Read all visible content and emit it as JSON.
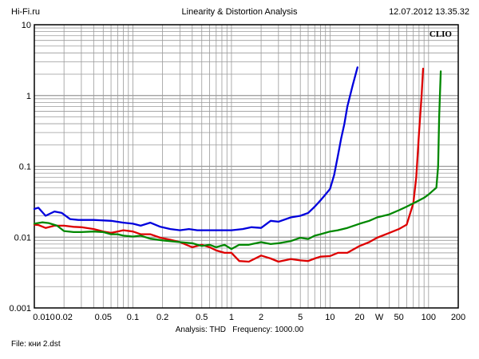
{
  "header": {
    "left": "Hi-Fi.ru",
    "center": "Linearity & Distortion Analysis",
    "right": "12.07.2012 13.35.32"
  },
  "brand": "CLIO",
  "footer": {
    "analysis_label": "Analysis: THD",
    "frequency_label": "Frequency: 1000.00",
    "file_label": "File: кни 2.dst"
  },
  "chart_data": {
    "type": "line",
    "xscale": "log",
    "yscale": "log",
    "xlim": [
      0.01,
      200
    ],
    "ylim": [
      0.001,
      10
    ],
    "xlabel": "W",
    "ylabel": "",
    "grid": true,
    "x_ticks": [
      "0.010",
      "0.02",
      "0.05",
      "0.1",
      "0.2",
      "0.5",
      "1",
      "2",
      "5",
      "10",
      "20",
      "50",
      "100",
      "200"
    ],
    "x_tick_values": [
      0.01,
      0.02,
      0.05,
      0.1,
      0.2,
      0.5,
      1,
      2,
      5,
      10,
      20,
      50,
      100,
      200
    ],
    "y_ticks": [
      "10",
      "1",
      "0.1",
      "0.01",
      "0.001"
    ],
    "y_tick_values": [
      10,
      1,
      0.1,
      0.01,
      0.001
    ],
    "series": [
      {
        "color": "#0000dd",
        "points": [
          [
            0.01,
            0.025
          ],
          [
            0.011,
            0.026
          ],
          [
            0.013,
            0.02
          ],
          [
            0.016,
            0.023
          ],
          [
            0.019,
            0.022
          ],
          [
            0.023,
            0.018
          ],
          [
            0.028,
            0.0175
          ],
          [
            0.04,
            0.0175
          ],
          [
            0.06,
            0.017
          ],
          [
            0.08,
            0.016
          ],
          [
            0.1,
            0.0155
          ],
          [
            0.12,
            0.0145
          ],
          [
            0.15,
            0.016
          ],
          [
            0.19,
            0.014
          ],
          [
            0.24,
            0.013
          ],
          [
            0.3,
            0.0125
          ],
          [
            0.37,
            0.013
          ],
          [
            0.45,
            0.0125
          ],
          [
            0.6,
            0.0125
          ],
          [
            0.8,
            0.0125
          ],
          [
            1,
            0.0125
          ],
          [
            1.3,
            0.013
          ],
          [
            1.6,
            0.0138
          ],
          [
            2,
            0.0135
          ],
          [
            2.5,
            0.017
          ],
          [
            3,
            0.0165
          ],
          [
            4,
            0.019
          ],
          [
            5,
            0.02
          ],
          [
            6,
            0.022
          ],
          [
            7,
            0.027
          ],
          [
            8,
            0.033
          ],
          [
            9,
            0.04
          ],
          [
            10,
            0.048
          ],
          [
            11,
            0.075
          ],
          [
            12,
            0.14
          ],
          [
            13,
            0.25
          ],
          [
            14,
            0.4
          ],
          [
            15,
            0.7
          ],
          [
            17,
            1.4
          ],
          [
            19,
            2.5
          ]
        ]
      },
      {
        "color": "#dd0000",
        "points": [
          [
            0.01,
            0.015
          ],
          [
            0.011,
            0.0148
          ],
          [
            0.013,
            0.0135
          ],
          [
            0.016,
            0.0145
          ],
          [
            0.02,
            0.0145
          ],
          [
            0.025,
            0.014
          ],
          [
            0.03,
            0.0138
          ],
          [
            0.04,
            0.013
          ],
          [
            0.05,
            0.012
          ],
          [
            0.06,
            0.0115
          ],
          [
            0.07,
            0.012
          ],
          [
            0.08,
            0.0125
          ],
          [
            0.1,
            0.012
          ],
          [
            0.12,
            0.011
          ],
          [
            0.15,
            0.011
          ],
          [
            0.19,
            0.0098
          ],
          [
            0.24,
            0.0092
          ],
          [
            0.3,
            0.0085
          ],
          [
            0.4,
            0.0072
          ],
          [
            0.5,
            0.0078
          ],
          [
            0.6,
            0.0072
          ],
          [
            0.7,
            0.0065
          ],
          [
            0.85,
            0.006
          ],
          [
            1,
            0.006
          ],
          [
            1.2,
            0.0046
          ],
          [
            1.5,
            0.0045
          ],
          [
            2,
            0.0055
          ],
          [
            2.5,
            0.005
          ],
          [
            3,
            0.0045
          ],
          [
            4,
            0.0049
          ],
          [
            5,
            0.0047
          ],
          [
            6,
            0.0046
          ],
          [
            7,
            0.005
          ],
          [
            8,
            0.0053
          ],
          [
            10,
            0.0054
          ],
          [
            12,
            0.006
          ],
          [
            15,
            0.006
          ],
          [
            20,
            0.0075
          ],
          [
            25,
            0.0085
          ],
          [
            30,
            0.0098
          ],
          [
            40,
            0.0115
          ],
          [
            50,
            0.013
          ],
          [
            60,
            0.015
          ],
          [
            70,
            0.03
          ],
          [
            75,
            0.07
          ],
          [
            80,
            0.3
          ],
          [
            85,
            1.0
          ],
          [
            88,
            2.4
          ]
        ]
      },
      {
        "color": "#008800",
        "points": [
          [
            0.01,
            0.0155
          ],
          [
            0.012,
            0.0162
          ],
          [
            0.014,
            0.0158
          ],
          [
            0.017,
            0.0145
          ],
          [
            0.02,
            0.0122
          ],
          [
            0.025,
            0.0118
          ],
          [
            0.03,
            0.0118
          ],
          [
            0.04,
            0.012
          ],
          [
            0.05,
            0.0118
          ],
          [
            0.06,
            0.011
          ],
          [
            0.07,
            0.011
          ],
          [
            0.08,
            0.0105
          ],
          [
            0.1,
            0.0102
          ],
          [
            0.12,
            0.0105
          ],
          [
            0.15,
            0.0095
          ],
          [
            0.2,
            0.009
          ],
          [
            0.3,
            0.0085
          ],
          [
            0.4,
            0.0082
          ],
          [
            0.5,
            0.0075
          ],
          [
            0.6,
            0.0078
          ],
          [
            0.7,
            0.0072
          ],
          [
            0.85,
            0.0078
          ],
          [
            1,
            0.0068
          ],
          [
            1.2,
            0.0078
          ],
          [
            1.5,
            0.0078
          ],
          [
            2,
            0.0085
          ],
          [
            2.5,
            0.008
          ],
          [
            3,
            0.0082
          ],
          [
            4,
            0.0088
          ],
          [
            5,
            0.0098
          ],
          [
            6,
            0.0094
          ],
          [
            7,
            0.0105
          ],
          [
            8,
            0.011
          ],
          [
            10,
            0.012
          ],
          [
            12,
            0.0125
          ],
          [
            15,
            0.0135
          ],
          [
            20,
            0.0155
          ],
          [
            25,
            0.017
          ],
          [
            30,
            0.019
          ],
          [
            40,
            0.021
          ],
          [
            50,
            0.024
          ],
          [
            60,
            0.027
          ],
          [
            70,
            0.03
          ],
          [
            80,
            0.033
          ],
          [
            90,
            0.036
          ],
          [
            100,
            0.04
          ],
          [
            110,
            0.045
          ],
          [
            120,
            0.05
          ],
          [
            125,
            0.1
          ],
          [
            128,
            0.5
          ],
          [
            131,
            1.2
          ],
          [
            133,
            2.2
          ]
        ]
      }
    ]
  }
}
